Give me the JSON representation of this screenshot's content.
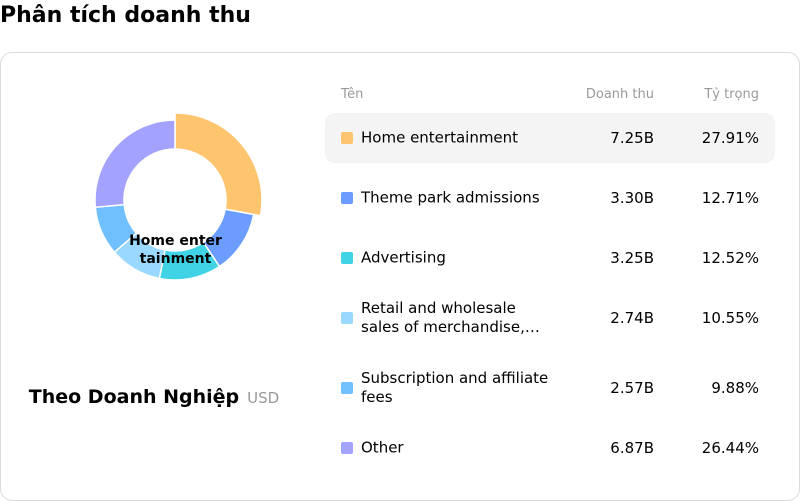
{
  "page": {
    "title": "Phân tích doanh thu"
  },
  "donut": {
    "center_label": "Home entertainment"
  },
  "segment": {
    "label": "Theo Doanh Nghiệp",
    "unit": "USD"
  },
  "table": {
    "headers": {
      "name": "Tên",
      "revenue": "Doanh thu",
      "share": "Tỷ trọng"
    },
    "rows": [
      {
        "name": "Home entertainment",
        "revenue": "7.25B",
        "share": "27.91%",
        "share_value": 27.91,
        "color": "#FFC56E"
      },
      {
        "name": "Theme park admissions",
        "revenue": "3.30B",
        "share": "12.71%",
        "share_value": 12.71,
        "color": "#6A9DFF"
      },
      {
        "name": "Advertising",
        "revenue": "3.25B",
        "share": "12.52%",
        "share_value": 12.52,
        "color": "#3FD3E5"
      },
      {
        "name": "Retail and wholesale sales of merchandise, content and services",
        "revenue": "2.74B",
        "share": "10.55%",
        "share_value": 10.55,
        "color": "#9AD8FF"
      },
      {
        "name": "Subscription and affiliate fees",
        "revenue": "2.57B",
        "share": "9.88%",
        "share_value": 9.88,
        "color": "#70C0FF"
      },
      {
        "name": "Other",
        "revenue": "6.87B",
        "share": "26.44%",
        "share_value": 26.44,
        "color": "#A3A3FF"
      }
    ],
    "selected_index": 0
  },
  "chart_data": {
    "type": "pie",
    "categories": [
      "Home entertainment",
      "Theme park admissions",
      "Advertising",
      "Retail and wholesale sales of merchandise, content and services",
      "Subscription and affiliate fees",
      "Other"
    ],
    "values": [
      27.91,
      12.71,
      12.52,
      10.55,
      9.88,
      26.44
    ],
    "colors": [
      "#FFC56E",
      "#6A9DFF",
      "#3FD3E5",
      "#9AD8FF",
      "#70C0FF",
      "#A3A3FF"
    ],
    "selected": "Home entertainment"
  }
}
